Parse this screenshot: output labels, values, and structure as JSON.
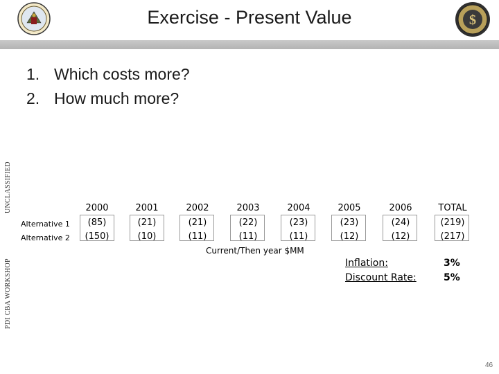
{
  "slide": {
    "title": "Exercise - Present Value",
    "page_number": "46"
  },
  "side_labels": {
    "top": "UNCLASSIFIED",
    "bottom": "PDI CBA WORKSHOP"
  },
  "questions": [
    {
      "num": "1.",
      "text": "Which costs more?"
    },
    {
      "num": "2.",
      "text": "How much more?"
    }
  ],
  "table": {
    "years": [
      "2000",
      "2001",
      "2002",
      "2003",
      "2004",
      "2005",
      "2006",
      "TOTAL"
    ],
    "rows": [
      {
        "label": "Alternative 1",
        "values": [
          "(85)",
          "(21)",
          "(21)",
          "(22)",
          "(23)",
          "(23)",
          "(24)",
          "(219)"
        ]
      },
      {
        "label": "Alternative 2",
        "values": [
          "(150)",
          "(10)",
          "(11)",
          "(11)",
          "(11)",
          "(12)",
          "(12)",
          "(217)"
        ]
      }
    ],
    "caption": "Current/Then year $MM"
  },
  "rates": {
    "inflation_label": "Inflation:",
    "inflation_value": "3%",
    "discount_label": "Discount Rate:",
    "discount_value": "5%"
  },
  "icons": {
    "left_logo": "army-seal-icon",
    "right_logo": "finance-seal-icon"
  }
}
